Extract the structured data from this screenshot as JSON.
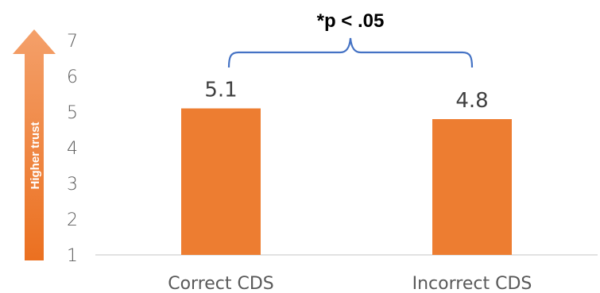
{
  "chart_data": {
    "type": "bar",
    "categories": [
      "Correct CDS",
      "Incorrect CDS"
    ],
    "values": [
      5.1,
      4.8
    ],
    "data_labels": [
      "5.1",
      "4.8"
    ],
    "yticks": [
      1,
      2,
      3,
      4,
      5,
      6,
      7
    ],
    "ylim": [
      1,
      7
    ],
    "bar_color": "#ED7D31",
    "grid": false,
    "annotation": "*p < .05",
    "arrow_label": "Higher trust",
    "arrow_color": "#F07A2C",
    "bracket_color": "#4472C4"
  }
}
